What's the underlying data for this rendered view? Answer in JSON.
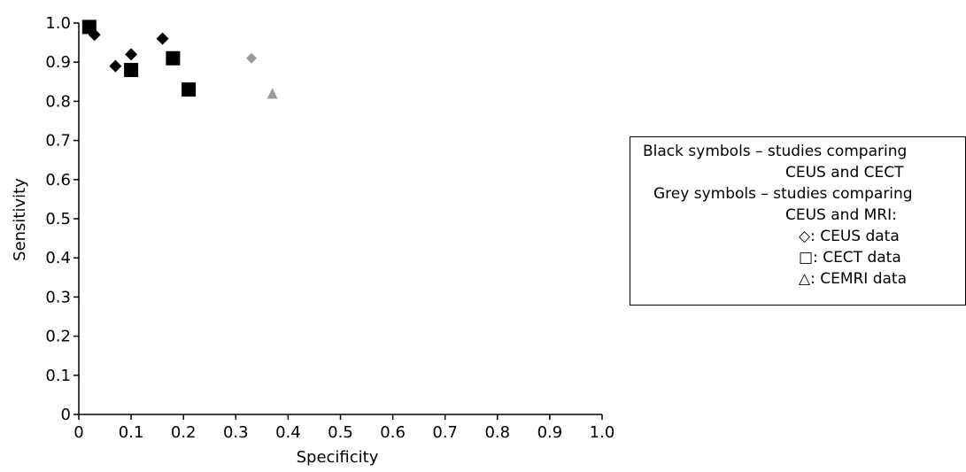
{
  "chart_data": {
    "type": "scatter",
    "title": "",
    "xlabel": "Specificity",
    "ylabel": "Sensitivity",
    "xlim": [
      0,
      1.0
    ],
    "ylim": [
      0,
      1.0
    ],
    "x_ticks": [
      "0",
      "0.1",
      "0.2",
      "0.3",
      "0.4",
      "0.5",
      "0.6",
      "0.7",
      "0.8",
      "0.9",
      "1.0"
    ],
    "y_ticks": [
      "0",
      "0.1",
      "0.2",
      "0.3",
      "0.4",
      "0.5",
      "0.6",
      "0.7",
      "0.8",
      "0.9",
      "1.0"
    ],
    "grid": false,
    "legend_position": "right",
    "series": [
      {
        "marker": "diamond",
        "color": "#000000",
        "points": [
          [
            0.03,
            0.97
          ],
          [
            0.07,
            0.89
          ],
          [
            0.1,
            0.92
          ],
          [
            0.16,
            0.96
          ]
        ]
      },
      {
        "marker": "square",
        "color": "#000000",
        "points": [
          [
            0.02,
            0.99
          ],
          [
            0.1,
            0.88
          ],
          [
            0.18,
            0.91
          ],
          [
            0.21,
            0.83
          ]
        ]
      },
      {
        "marker": "diamond",
        "color": "#999999",
        "points": [
          [
            0.33,
            0.91
          ]
        ]
      },
      {
        "marker": "triangle",
        "color": "#999999",
        "points": [
          [
            0.37,
            0.82
          ]
        ]
      }
    ]
  },
  "legend": {
    "black_label": "Black symbols – studies comparing",
    "black_sub": "CEUS and CECT",
    "grey_label": "Grey symbols – studies comparing",
    "grey_sub": "CEUS and MRI:",
    "items": [
      "◇: CEUS data",
      "□: CECT data",
      "△: CEMRI data"
    ]
  }
}
